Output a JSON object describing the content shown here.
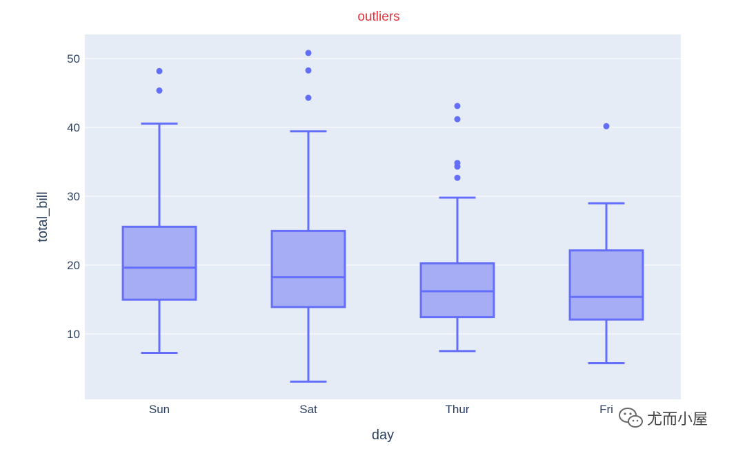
{
  "chart_data": {
    "type": "box",
    "title": "outliers",
    "xlabel": "day",
    "ylabel": "total_bill",
    "ylim": [
      0.5,
      53.5
    ],
    "yticks": [
      10,
      20,
      30,
      40,
      50
    ],
    "grid": true,
    "categories": [
      "Sun",
      "Sat",
      "Thur",
      "Fri"
    ],
    "boxes": [
      {
        "category": "Sun",
        "lower_fence": 7.25,
        "q1": 14.98,
        "median": 19.63,
        "q3": 25.57,
        "upper_fence": 40.55,
        "outliers": [
          45.35,
          48.17
        ]
      },
      {
        "category": "Sat",
        "lower_fence": 3.07,
        "q1": 13.91,
        "median": 18.24,
        "q3": 24.96,
        "upper_fence": 39.42,
        "outliers": [
          44.3,
          48.27,
          50.81
        ]
      },
      {
        "category": "Thur",
        "lower_fence": 7.51,
        "q1": 12.44,
        "median": 16.2,
        "q3": 20.25,
        "upper_fence": 29.8,
        "outliers": [
          32.68,
          34.3,
          34.83,
          41.19,
          43.11
        ]
      },
      {
        "category": "Fri",
        "lower_fence": 5.75,
        "q1": 12.09,
        "median": 15.38,
        "q3": 22.13,
        "upper_fence": 28.97,
        "outliers": [
          40.17
        ]
      }
    ],
    "colors": {
      "line": "#636efa",
      "fill": "#a7adf4",
      "plot_bg": "#e5ecf6",
      "grid": "#ffffff",
      "title": "#e5323c",
      "text": "#2a3f5f"
    }
  },
  "watermark": {
    "text": "尤而小屋",
    "icon": "wechat-icon"
  }
}
